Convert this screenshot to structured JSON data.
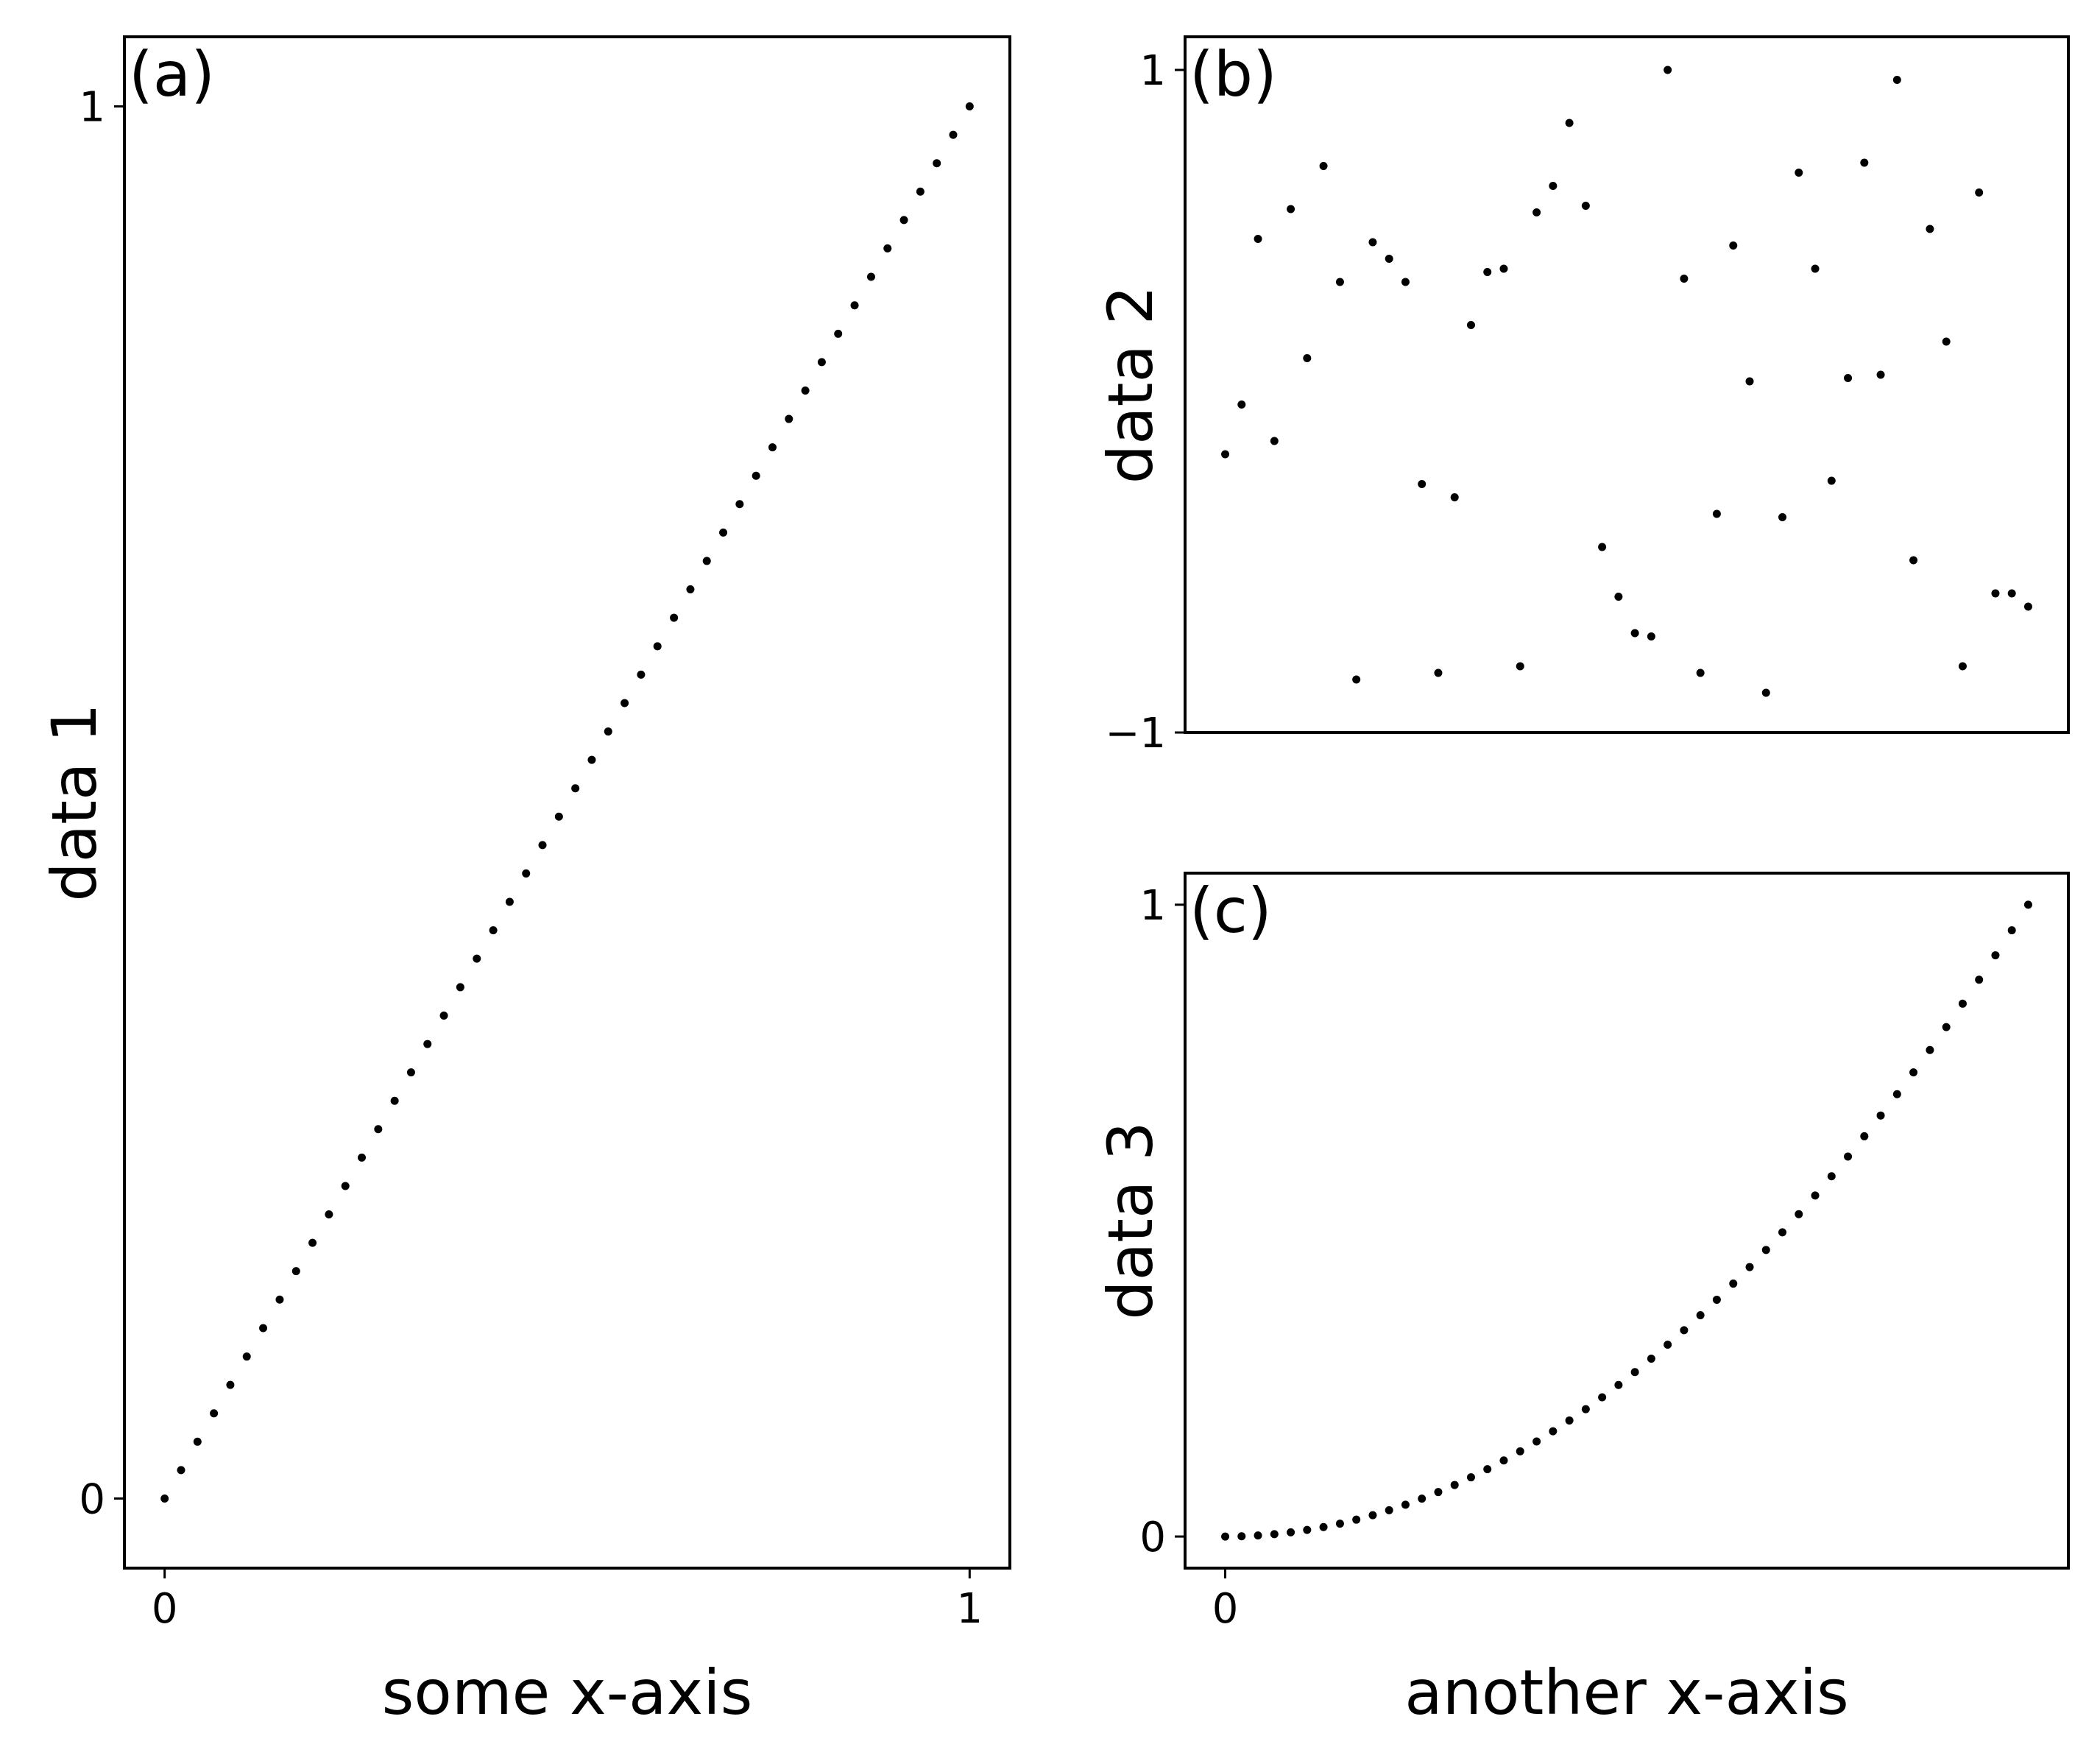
{
  "chart_data": [
    {
      "panel": "a",
      "panel_label": "(a)",
      "type": "scatter",
      "xlabel": "some x-axis",
      "ylabel": "data 1",
      "xlim": [
        -0.05,
        1.05
      ],
      "ylim": [
        -0.05,
        1.05
      ],
      "xticks": [
        0,
        1
      ],
      "xtick_labels": [
        "0",
        "1"
      ],
      "yticks": [
        0,
        1
      ],
      "ytick_labels": [
        "0",
        "1"
      ],
      "series": [
        {
          "name": "data 1",
          "x": [
            0.0,
            0.0204,
            0.0408,
            0.0612,
            0.0816,
            0.102,
            0.1224,
            0.1429,
            0.1633,
            0.1837,
            0.2041,
            0.2245,
            0.2449,
            0.2653,
            0.2857,
            0.3061,
            0.3265,
            0.3469,
            0.3673,
            0.3878,
            0.4082,
            0.4286,
            0.449,
            0.4694,
            0.4898,
            0.5102,
            0.5306,
            0.551,
            0.5714,
            0.5918,
            0.6122,
            0.6327,
            0.6531,
            0.6735,
            0.6939,
            0.7143,
            0.7347,
            0.7551,
            0.7755,
            0.7959,
            0.8163,
            0.8367,
            0.8571,
            0.8776,
            0.898,
            0.9184,
            0.9388,
            0.9592,
            0.9796,
            1.0
          ],
          "y": [
            0.0,
            0.0204,
            0.0408,
            0.0612,
            0.0816,
            0.102,
            0.1224,
            0.1429,
            0.1633,
            0.1837,
            0.2041,
            0.2245,
            0.2449,
            0.2653,
            0.2857,
            0.3061,
            0.3265,
            0.3469,
            0.3673,
            0.3878,
            0.4082,
            0.4286,
            0.449,
            0.4694,
            0.4898,
            0.5102,
            0.5306,
            0.551,
            0.5714,
            0.5918,
            0.6122,
            0.6327,
            0.6531,
            0.6735,
            0.6939,
            0.7143,
            0.7347,
            0.7551,
            0.7755,
            0.7959,
            0.8163,
            0.8367,
            0.8571,
            0.8776,
            0.898,
            0.9184,
            0.9388,
            0.9592,
            0.9796,
            1.0
          ]
        }
      ]
    },
    {
      "panel": "b",
      "panel_label": "(b)",
      "type": "scatter",
      "xlabel": "",
      "ylabel": "data 2",
      "xlim": [
        -0.05,
        1.05
      ],
      "ylim": [
        -1.0,
        1.1
      ],
      "xticks": [],
      "xtick_labels": [],
      "yticks": [
        -1,
        1
      ],
      "ytick_labels": [
        "−1",
        "1"
      ],
      "series": [
        {
          "name": "data 2",
          "x": [
            0.0,
            0.0204,
            0.0408,
            0.0612,
            0.0816,
            0.102,
            0.1224,
            0.1429,
            0.1633,
            0.1837,
            0.2041,
            0.2245,
            0.2449,
            0.2653,
            0.2857,
            0.3061,
            0.3265,
            0.3469,
            0.3673,
            0.3878,
            0.4082,
            0.4286,
            0.449,
            0.4694,
            0.4898,
            0.5102,
            0.5306,
            0.551,
            0.5714,
            0.5918,
            0.6122,
            0.6327,
            0.6531,
            0.6735,
            0.6939,
            0.7143,
            0.7347,
            0.7551,
            0.7755,
            0.7959,
            0.8163,
            0.8367,
            0.8571,
            0.8776,
            0.898,
            0.9184,
            0.9388,
            0.9592,
            0.9796,
            1.0
          ],
          "y": [
            -0.16,
            -0.01,
            0.49,
            -0.12,
            0.58,
            0.13,
            0.71,
            0.36,
            -0.84,
            0.48,
            0.43,
            0.36,
            -0.25,
            -0.82,
            -0.29,
            0.23,
            0.39,
            0.4,
            -0.8,
            0.57,
            0.65,
            0.84,
            0.59,
            -0.44,
            -0.59,
            -0.7,
            -0.71,
            1.0,
            0.37,
            -0.82,
            -0.34,
            0.47,
            0.06,
            -0.88,
            -0.35,
            0.69,
            0.4,
            -0.24,
            0.07,
            0.72,
            0.08,
            0.97,
            -0.48,
            0.52,
            0.18,
            -0.8,
            0.63,
            -0.58,
            -0.58,
            -0.62
          ]
        }
      ]
    },
    {
      "panel": "c",
      "panel_label": "(c)",
      "type": "scatter",
      "xlabel": "another x-axis",
      "ylabel": "data 3",
      "xlim": [
        -0.05,
        1.05
      ],
      "ylim": [
        -0.05,
        1.05
      ],
      "xticks": [
        0
      ],
      "xtick_labels": [
        "0"
      ],
      "yticks": [
        0,
        1
      ],
      "ytick_labels": [
        "0",
        "1"
      ],
      "series": [
        {
          "name": "data 3",
          "x": [
            0.0,
            0.0204,
            0.0408,
            0.0612,
            0.0816,
            0.102,
            0.1224,
            0.1429,
            0.1633,
            0.1837,
            0.2041,
            0.2245,
            0.2449,
            0.2653,
            0.2857,
            0.3061,
            0.3265,
            0.3469,
            0.3673,
            0.3878,
            0.4082,
            0.4286,
            0.449,
            0.4694,
            0.4898,
            0.5102,
            0.5306,
            0.551,
            0.5714,
            0.5918,
            0.6122,
            0.6327,
            0.6531,
            0.6735,
            0.6939,
            0.7143,
            0.7347,
            0.7551,
            0.7755,
            0.7959,
            0.8163,
            0.8367,
            0.8571,
            0.8776,
            0.898,
            0.9184,
            0.9388,
            0.9592,
            0.9796,
            1.0
          ],
          "y": [
            0.0,
            0.0004,
            0.0017,
            0.0037,
            0.0067,
            0.0104,
            0.015,
            0.0204,
            0.0267,
            0.0337,
            0.0416,
            0.0504,
            0.06,
            0.0704,
            0.0816,
            0.0937,
            0.1066,
            0.1204,
            0.1349,
            0.1504,
            0.1666,
            0.1837,
            0.2016,
            0.2203,
            0.2399,
            0.2603,
            0.2815,
            0.3036,
            0.3265,
            0.3503,
            0.3748,
            0.4003,
            0.4265,
            0.4536,
            0.4815,
            0.5102,
            0.5398,
            0.5702,
            0.6014,
            0.6335,
            0.6664,
            0.7001,
            0.7347,
            0.7701,
            0.8063,
            0.8434,
            0.8813,
            0.92,
            0.9596,
            1.0
          ]
        }
      ]
    }
  ]
}
